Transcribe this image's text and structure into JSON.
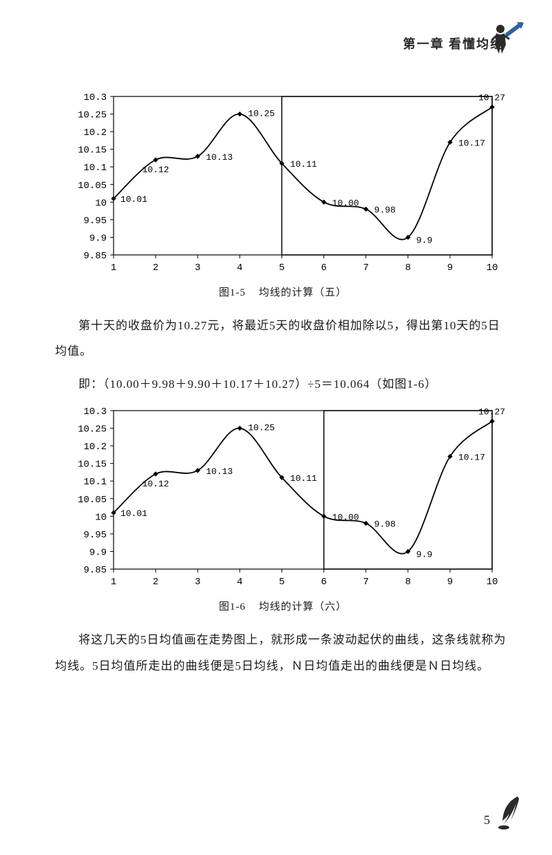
{
  "header": {
    "chapter": "第一章  看懂均线"
  },
  "chart1": {
    "type": "line",
    "caption_id": "图1-5",
    "caption_text": "均线的计算（五）",
    "x_values": [
      1,
      2,
      3,
      4,
      5,
      6,
      7,
      8,
      9,
      10
    ],
    "y_values": [
      10.01,
      10.12,
      10.13,
      10.25,
      10.11,
      10.0,
      9.98,
      9.9,
      10.17,
      10.27
    ],
    "labels": [
      "10.01",
      "10.12",
      "10.13",
      "10.25",
      "10.11",
      "10.00",
      "9.98",
      "9.9",
      "10.17",
      "10.27"
    ],
    "ylim": [
      9.85,
      10.3
    ],
    "yticks": [
      9.85,
      9.9,
      9.95,
      10,
      10.05,
      10.1,
      10.15,
      10.2,
      10.25,
      10.3
    ],
    "ytick_labels": [
      "9.85",
      "9.9",
      "9.95",
      "10",
      "10.05",
      "10.1",
      "10.15",
      "10.2",
      "10.25",
      "10.3"
    ],
    "xlim": [
      1,
      10
    ],
    "xticks": [
      1,
      2,
      3,
      4,
      5,
      6,
      7,
      8,
      9,
      10
    ],
    "xtick_labels": [
      "1",
      "2",
      "3",
      "4",
      "5",
      "6",
      "7",
      "8",
      "9",
      "10"
    ],
    "line_color": "#000000",
    "marker_color": "#000000",
    "marker_style": "diamond",
    "marker_size": 6,
    "line_width": 1.8,
    "highlight_box": {
      "x_start": 5,
      "x_end": 10
    },
    "highlight_color": "#000000",
    "label_fontsize": 13,
    "tick_fontsize": 14,
    "grid": false,
    "background": "#ffffff"
  },
  "text1": {
    "p1": "第十天的收盘价为10.27元，将最近5天的收盘价相加除以5，得出第10天的5日均值。",
    "formula": "即：（10.00＋9.98＋9.90＋10.17＋10.27）÷5＝10.064（如图1-6）"
  },
  "chart2": {
    "type": "line",
    "caption_id": "图1-6",
    "caption_text": "均线的计算（六）",
    "x_values": [
      1,
      2,
      3,
      4,
      5,
      6,
      7,
      8,
      9,
      10
    ],
    "y_values": [
      10.01,
      10.12,
      10.13,
      10.25,
      10.11,
      10.0,
      9.98,
      9.9,
      10.17,
      10.27
    ],
    "labels": [
      "10.01",
      "10.12",
      "10.13",
      "10.25",
      "10.11",
      "10.00",
      "9.98",
      "9.9",
      "10.17",
      "10.27"
    ],
    "ylim": [
      9.85,
      10.3
    ],
    "yticks": [
      9.85,
      9.9,
      9.95,
      10,
      10.05,
      10.1,
      10.15,
      10.2,
      10.25,
      10.3
    ],
    "ytick_labels": [
      "9.85",
      "9.9",
      "9.95",
      "10",
      "10.05",
      "10.1",
      "10.15",
      "10.2",
      "10.25",
      "10.3"
    ],
    "xlim": [
      1,
      10
    ],
    "xticks": [
      1,
      2,
      3,
      4,
      5,
      6,
      7,
      8,
      9,
      10
    ],
    "xtick_labels": [
      "1",
      "2",
      "3",
      "4",
      "5",
      "6",
      "7",
      "8",
      "9",
      "10"
    ],
    "line_color": "#000000",
    "marker_color": "#000000",
    "marker_style": "diamond",
    "marker_size": 6,
    "line_width": 1.8,
    "highlight_box": {
      "x_start": 6,
      "x_end": 10
    },
    "highlight_color": "#000000",
    "label_fontsize": 13,
    "tick_fontsize": 14,
    "grid": false,
    "background": "#ffffff"
  },
  "text2": {
    "p1": "将这几天的5日均值画在走势图上，就形成一条波动起伏的曲线，这条线就称为均线。5日均值所走出的曲线便是5日均线，Ｎ日均值走出的曲线便是Ｎ日均线。"
  },
  "page_number": "5"
}
